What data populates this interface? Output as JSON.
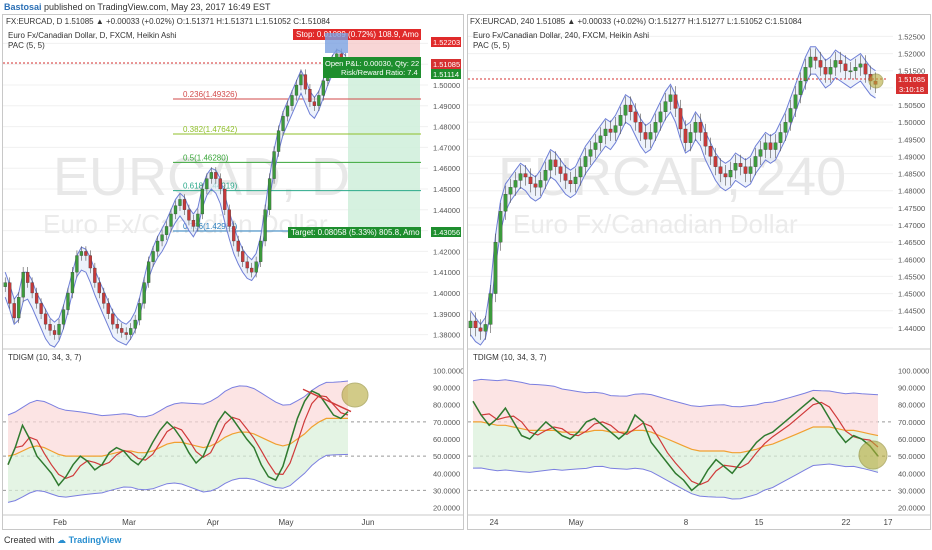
{
  "header": {
    "author": "Bastosai",
    "published": "published on TradingView.com, May 23, 2017 16:49 EST"
  },
  "footer": {
    "created_with": "Created with",
    "brand": "TradingView"
  },
  "panes": [
    {
      "ohlc_line": "FX:EURCAD, D 1.51085 ▲ +0.00033 (+0.02%) O:1.51371 H:1.51371 L:1.51052 C:1.51084",
      "title": "Euro Fx/Canadian Dollar, D, FXCM, Heikin Ashi",
      "pac": "PAC (5, 5)",
      "watermark_big": "EURCAD, D",
      "watermark_small": "Euro Fx/Canadian Dollar",
      "indicator_title": "TDIGM (10, 34, 3, 7)",
      "price_labels": [
        "1.52000",
        "1.51000",
        "1.50000",
        "1.49000",
        "1.48000",
        "1.47000",
        "1.46000",
        "1.45000",
        "1.44000",
        "1.43000",
        "1.42000",
        "1.41000",
        "1.40000",
        "1.39000",
        "1.38000"
      ],
      "ind_labels": [
        "100.0000",
        "90.0000",
        "80.0000",
        "70.0000",
        "60.0000",
        "50.0000",
        "40.0000",
        "30.0000",
        "20.0000"
      ],
      "x_labels": [
        "Feb",
        "Mar",
        "Apr",
        "May",
        "Jun"
      ],
      "badges": {
        "stop": "1.52203",
        "cur1": "1.51085",
        "cur2": "1.51114",
        "target": "1.43056"
      },
      "position_tool": {
        "stop_text": "Stop: 0.01089 (0.72%) 108.9, Amo",
        "pl_text": "Open P&L: 0.00030, Qty: 22",
        "rr_text": "Risk/Reward Ratio: 7.4",
        "target_text": "Target: 0.08058 (5.33%) 805.8, Amo"
      },
      "fib_levels": [
        {
          "label": "0.236(1.49326)",
          "color": "#d24a4a"
        },
        {
          "label": "0.382(1.47642)",
          "color": "#8fbf2a"
        },
        {
          "label": "0.5(1.46280)",
          "color": "#3aa63a"
        },
        {
          "label": "0.618(1.44919)",
          "color": "#2aa88a"
        },
        {
          "label": "0.786(1.42981)",
          "color": "#2a7fbf"
        }
      ]
    },
    {
      "ohlc_line": "FX:EURCAD, 240 1.51085 ▲ +0.00033 (+0.02%) O:1.51277 H:1.51277 L:1.51052 C:1.51084",
      "title": "Euro Fx/Canadian Dollar, 240, FXCM, Heikin Ashi",
      "pac": "PAC (5, 5)",
      "watermark_big": "EURCAD, 240",
      "watermark_small": "Euro Fx/Canadian Dollar",
      "indicator_title": "TDIGM (10, 34, 3, 7)",
      "price_labels": [
        "1.52500",
        "1.52000",
        "1.51500",
        "1.51000",
        "1.50500",
        "1.50000",
        "1.49500",
        "1.49000",
        "1.48500",
        "1.48000",
        "1.47500",
        "1.47000",
        "1.46500",
        "1.46000",
        "1.45500",
        "1.45000",
        "1.44500",
        "1.44000"
      ],
      "ind_labels": [
        "100.0000",
        "90.0000",
        "80.0000",
        "70.0000",
        "60.0000",
        "50.0000",
        "40.0000",
        "30.0000",
        "20.0000"
      ],
      "x_labels": [
        "24",
        "May",
        "8",
        "15",
        "22",
        "17"
      ],
      "badges": {
        "cur1": "1.51085",
        "time": "3:10:18"
      }
    }
  ],
  "chart_data": [
    {
      "type": "candlestick",
      "title": "Euro Fx/Canadian Dollar, D, FXCM, Heikin Ashi",
      "ylim": [
        1.375,
        1.525
      ],
      "close": [
        1.405,
        1.395,
        1.388,
        1.398,
        1.41,
        1.405,
        1.4,
        1.395,
        1.39,
        1.385,
        1.382,
        1.38,
        1.385,
        1.392,
        1.4,
        1.41,
        1.418,
        1.42,
        1.418,
        1.412,
        1.405,
        1.4,
        1.395,
        1.39,
        1.385,
        1.383,
        1.381,
        1.38,
        1.383,
        1.387,
        1.395,
        1.405,
        1.415,
        1.42,
        1.425,
        1.428,
        1.432,
        1.438,
        1.442,
        1.445,
        1.44,
        1.435,
        1.432,
        1.438,
        1.45,
        1.455,
        1.458,
        1.455,
        1.45,
        1.44,
        1.432,
        1.425,
        1.42,
        1.415,
        1.412,
        1.41,
        1.415,
        1.425,
        1.44,
        1.455,
        1.468,
        1.478,
        1.485,
        1.49,
        1.495,
        1.5,
        1.505,
        1.498,
        1.492,
        1.49,
        1.495,
        1.502,
        1.508,
        1.512,
        1.515,
        1.513,
        1.51
      ],
      "pac_upper": [
        1.41,
        1.404,
        1.397,
        1.4,
        1.41,
        1.41,
        1.406,
        1.4,
        1.396,
        1.392,
        1.388,
        1.386,
        1.388,
        1.394,
        1.402,
        1.41,
        1.418,
        1.422,
        1.421,
        1.417,
        1.411,
        1.406,
        1.401,
        1.396,
        1.391,
        1.388,
        1.386,
        1.385,
        1.387,
        1.391,
        1.398,
        1.407,
        1.416,
        1.422,
        1.427,
        1.431,
        1.435,
        1.44,
        1.445,
        1.448,
        1.446,
        1.441,
        1.438,
        1.441,
        1.451,
        1.457,
        1.46,
        1.459,
        1.455,
        1.447,
        1.439,
        1.432,
        1.426,
        1.421,
        1.418,
        1.416,
        1.419,
        1.427,
        1.441,
        1.456,
        1.469,
        1.479,
        1.487,
        1.492,
        1.497,
        1.502,
        1.507,
        1.503,
        1.497,
        1.494,
        1.497,
        1.503,
        1.509,
        1.514,
        1.517,
        1.516,
        1.514
      ],
      "pac_lower": [
        1.398,
        1.392,
        1.385,
        1.387,
        1.396,
        1.397,
        1.393,
        1.388,
        1.383,
        1.378,
        1.375,
        1.374,
        1.377,
        1.383,
        1.391,
        1.4,
        1.408,
        1.411,
        1.41,
        1.405,
        1.399,
        1.394,
        1.389,
        1.384,
        1.379,
        1.377,
        1.376,
        1.375,
        1.378,
        1.382,
        1.389,
        1.398,
        1.407,
        1.413,
        1.417,
        1.42,
        1.424,
        1.43,
        1.434,
        1.437,
        1.434,
        1.43,
        1.427,
        1.431,
        1.441,
        1.447,
        1.45,
        1.448,
        1.443,
        1.434,
        1.426,
        1.419,
        1.414,
        1.41,
        1.407,
        1.406,
        1.409,
        1.417,
        1.431,
        1.446,
        1.458,
        1.468,
        1.476,
        1.481,
        1.486,
        1.491,
        1.496,
        1.491,
        1.486,
        1.484,
        1.488,
        1.494,
        1.5,
        1.505,
        1.508,
        1.507,
        1.505
      ],
      "fib": [
        1.49326,
        1.47642,
        1.4628,
        1.44919,
        1.42981
      ],
      "position": {
        "entry": 1.51114,
        "stop": 1.52203,
        "target": 1.43056
      }
    },
    {
      "type": "candlestick",
      "title": "Euro Fx/Canadian Dollar, 240, FXCM, Heikin Ashi",
      "ylim": [
        1.435,
        1.526
      ],
      "close": [
        1.442,
        1.44,
        1.439,
        1.441,
        1.45,
        1.465,
        1.474,
        1.479,
        1.481,
        1.483,
        1.485,
        1.484,
        1.482,
        1.481,
        1.483,
        1.486,
        1.489,
        1.487,
        1.485,
        1.483,
        1.482,
        1.484,
        1.487,
        1.49,
        1.492,
        1.494,
        1.496,
        1.498,
        1.497,
        1.499,
        1.502,
        1.505,
        1.503,
        1.5,
        1.497,
        1.495,
        1.497,
        1.5,
        1.503,
        1.506,
        1.508,
        1.504,
        1.498,
        1.494,
        1.497,
        1.5,
        1.497,
        1.493,
        1.49,
        1.487,
        1.485,
        1.484,
        1.486,
        1.488,
        1.487,
        1.485,
        1.487,
        1.49,
        1.492,
        1.494,
        1.492,
        1.494,
        1.497,
        1.5,
        1.504,
        1.508,
        1.512,
        1.516,
        1.519,
        1.518,
        1.516,
        1.514,
        1.516,
        1.518,
        1.517,
        1.515,
        1.515,
        1.516,
        1.517,
        1.514,
        1.512,
        1.511
      ],
      "pac_upper": [
        1.445,
        1.443,
        1.441,
        1.443,
        1.452,
        1.467,
        1.477,
        1.482,
        1.484,
        1.486,
        1.488,
        1.487,
        1.485,
        1.484,
        1.486,
        1.489,
        1.492,
        1.491,
        1.489,
        1.487,
        1.486,
        1.487,
        1.49,
        1.493,
        1.495,
        1.497,
        1.499,
        1.501,
        1.5,
        1.502,
        1.505,
        1.508,
        1.507,
        1.504,
        1.501,
        1.499,
        1.5,
        1.503,
        1.506,
        1.509,
        1.511,
        1.508,
        1.503,
        1.499,
        1.5,
        1.503,
        1.501,
        1.497,
        1.494,
        1.491,
        1.489,
        1.488,
        1.489,
        1.491,
        1.49,
        1.489,
        1.49,
        1.493,
        1.495,
        1.497,
        1.496,
        1.497,
        1.5,
        1.503,
        1.507,
        1.511,
        1.515,
        1.519,
        1.522,
        1.522,
        1.52,
        1.518,
        1.519,
        1.521,
        1.52,
        1.519,
        1.518,
        1.519,
        1.52,
        1.518,
        1.516,
        1.515
      ],
      "pac_lower": [
        1.438,
        1.436,
        1.435,
        1.437,
        1.444,
        1.458,
        1.468,
        1.474,
        1.477,
        1.479,
        1.481,
        1.48,
        1.478,
        1.477,
        1.478,
        1.481,
        1.484,
        1.483,
        1.481,
        1.479,
        1.478,
        1.479,
        1.482,
        1.485,
        1.487,
        1.489,
        1.491,
        1.493,
        1.492,
        1.494,
        1.497,
        1.5,
        1.499,
        1.496,
        1.493,
        1.491,
        1.492,
        1.495,
        1.498,
        1.501,
        1.503,
        1.5,
        1.495,
        1.491,
        1.492,
        1.495,
        1.493,
        1.489,
        1.486,
        1.483,
        1.481,
        1.48,
        1.481,
        1.483,
        1.482,
        1.481,
        1.482,
        1.485,
        1.487,
        1.489,
        1.488,
        1.489,
        1.492,
        1.495,
        1.499,
        1.503,
        1.507,
        1.511,
        1.514,
        1.514,
        1.512,
        1.51,
        1.511,
        1.513,
        1.512,
        1.511,
        1.51,
        1.511,
        1.512,
        1.51,
        1.508,
        1.507
      ]
    },
    {
      "type": "line",
      "title": "TDIGM (10, 34, 3, 7)",
      "ylim": [
        18,
        102
      ],
      "series": [
        {
          "values": [
            45,
            55,
            68,
            60,
            50,
            45,
            40,
            33,
            38,
            45,
            50,
            47,
            42,
            45,
            52,
            55,
            53,
            48,
            45,
            50,
            58,
            65,
            70,
            66,
            60,
            52,
            46,
            50,
            60,
            70,
            76,
            72,
            66,
            60,
            55,
            45,
            38,
            36,
            44,
            58,
            72,
            82,
            88,
            86,
            80,
            74,
            72,
            76
          ]
        },
        {
          "values": [
            50,
            51,
            53,
            55,
            56,
            55,
            53,
            51,
            50,
            50,
            50,
            50,
            50,
            50,
            51,
            52,
            53,
            53,
            52,
            52,
            53,
            55,
            57,
            58,
            58,
            57,
            56,
            55,
            56,
            58,
            61,
            63,
            64,
            64,
            63,
            61,
            59,
            57,
            56,
            57,
            60,
            63,
            67,
            70,
            72,
            72,
            72,
            72
          ]
        }
      ]
    },
    {
      "type": "line",
      "title": "TDIGM (10, 34, 3, 7)",
      "ylim": [
        18,
        102
      ],
      "series": [
        {
          "values": [
            82,
            74,
            68,
            72,
            78,
            70,
            62,
            60,
            65,
            70,
            66,
            62,
            60,
            64,
            70,
            72,
            68,
            64,
            60,
            64,
            74,
            70,
            58,
            52,
            46,
            40,
            36,
            30,
            34,
            42,
            48,
            44,
            40,
            46,
            52,
            58,
            62,
            64,
            68,
            72,
            76,
            80,
            84,
            80,
            72,
            64,
            58,
            62,
            60,
            56,
            50
          ]
        },
        {
          "values": [
            70,
            70,
            69,
            68,
            68,
            67,
            66,
            65,
            65,
            65,
            65,
            64,
            64,
            64,
            64,
            65,
            65,
            64,
            64,
            64,
            65,
            65,
            64,
            62,
            60,
            58,
            56,
            54,
            53,
            53,
            53,
            53,
            52,
            52,
            53,
            54,
            56,
            57,
            59,
            61,
            63,
            65,
            67,
            67,
            67,
            66,
            65,
            65,
            64,
            63,
            62
          ]
        }
      ]
    }
  ]
}
